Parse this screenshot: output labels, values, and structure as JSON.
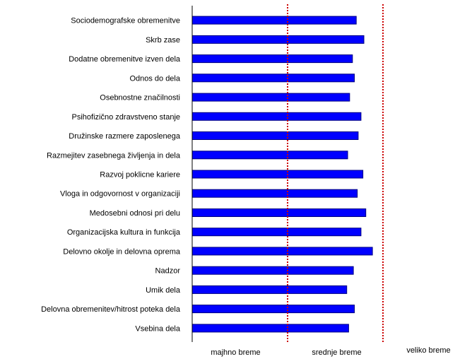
{
  "chart_data": {
    "type": "bar",
    "orientation": "horizontal",
    "categories": [
      "Sociodemografske obremenitve",
      "Skrb zase",
      "Dodatne obremenitve izven dela",
      "Odnos do dela",
      "Osebnostne značilnosti",
      "Psihofizično zdravstveno stanje",
      "Družinske razmere zaposlenega",
      "Razmejitev zasebnega življenja in dela",
      "Razvoj poklicne kariere",
      "Vloga in odgovornost v organizaciji",
      "Medosebni odnosi pri delu",
      "Organizacijska kultura in funkcija",
      "Delovno okolje in delovna oprema",
      "Nadzor",
      "Umik dela",
      "Delovna obremenitev/hitrost poteka dela",
      "Vsebina dela"
    ],
    "values": [
      1.72,
      1.8,
      1.68,
      1.7,
      1.65,
      1.77,
      1.74,
      1.63,
      1.79,
      1.73,
      1.82,
      1.77,
      1.89,
      1.69,
      1.62,
      1.7,
      1.64
    ],
    "xlim": [
      0,
      3
    ],
    "thresholds": [
      1,
      2
    ],
    "zone_labels": [
      "majhno breme",
      "srednje breme",
      "veliko breme"
    ],
    "grid": false,
    "legend": "none",
    "colors": {
      "bar_fill": "#0000ff",
      "bar_stroke": "#000080",
      "threshold_line": "#cc0000",
      "axis": "#000000"
    }
  }
}
